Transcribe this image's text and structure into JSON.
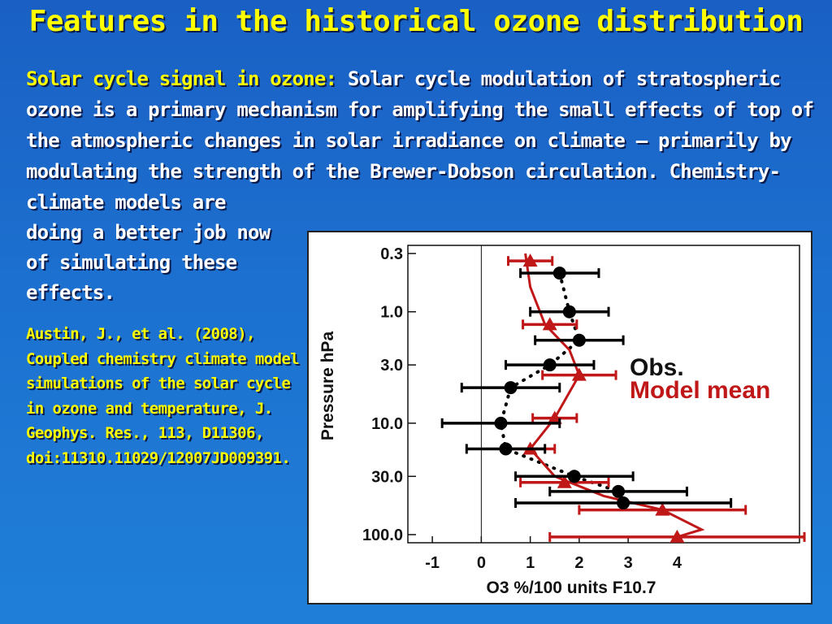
{
  "slide": {
    "title": "Features in the historical ozone distribution",
    "intro_highlight": "Solar cycle signal in ozone:",
    "intro_text": " Solar cycle modulation of stratospheric ozone is a primary mechanism for amplifying the small effects of top of the atmospheric changes in solar irradiance on climate – primarily by modulating the strength of the Brewer-Dobson circulation. Chemistry-climate models are",
    "intro_continued": "doing a better job now of simulating these effects.",
    "citation": "Austin, J., et al. (2008), Coupled chemistry climate model simulations of the solar cycle in ozone and temperature, J. Geophys. Res., 113, D11306, doi:11310.11029/12007JD009391.",
    "colors": {
      "title": "#ffff00",
      "citation": "#ffff00",
      "text": "#ffffff",
      "background": "#1c70cf"
    }
  },
  "chart_data": {
    "type": "scatter",
    "xlabel": "O3 %/100 units F10.7",
    "ylabel": "Pressure hPa",
    "xlim": [
      -1.5,
      6.5
    ],
    "ylim": [
      0.3,
      100.0
    ],
    "y_scale": "log",
    "x_ticks": [
      "-1",
      "0",
      "1",
      "2",
      "3",
      "4"
    ],
    "x_tick_values": [
      -1,
      0,
      1,
      2,
      3,
      4
    ],
    "y_ticks": [
      "0.3",
      "1.0",
      "3.0",
      "10.0",
      "30.0",
      "100.0"
    ],
    "y_tick_values": [
      0.3,
      1.0,
      3.0,
      10.0,
      30.0,
      100.0
    ],
    "zero_line": 0,
    "legend": {
      "position": "right",
      "obs_label": "Obs.",
      "model_label": "Model mean"
    },
    "colors": {
      "obs": "#000000",
      "model": "#c01818"
    },
    "series": [
      {
        "name": "Obs.",
        "style": "dotted-circles",
        "points": [
          {
            "x": 1.6,
            "y": 0.45,
            "xerr": 0.8
          },
          {
            "x": 1.8,
            "y": 1.0,
            "xerr": 0.8
          },
          {
            "x": 2.0,
            "y": 1.8,
            "xerr": 0.9
          },
          {
            "x": 1.4,
            "y": 3.0,
            "xerr": 0.9
          },
          {
            "x": 0.6,
            "y": 4.8,
            "xerr": 1.0
          },
          {
            "x": 0.4,
            "y": 10.0,
            "xerr": 1.2
          },
          {
            "x": 0.5,
            "y": 17.0,
            "xerr": 0.8
          },
          {
            "x": 1.9,
            "y": 30.0,
            "xerr": 1.2
          },
          {
            "x": 2.8,
            "y": 41.0,
            "xerr": 1.4
          },
          {
            "x": 2.9,
            "y": 52.0,
            "xerr": 2.2
          }
        ]
      },
      {
        "name": "Model mean",
        "style": "line-triangles",
        "points": [
          {
            "x": 1.0,
            "y": 0.35,
            "xerr": 0.45
          },
          {
            "x": 1.4,
            "y": 1.3,
            "xerr": 0.55
          },
          {
            "x": 2.0,
            "y": 3.7,
            "xerr": 0.75
          },
          {
            "x": 1.5,
            "y": 9.0,
            "xerr": 0.45
          },
          {
            "x": 1.0,
            "y": 17.0,
            "xerr": 0.5
          },
          {
            "x": 1.7,
            "y": 34.0,
            "xerr": 0.9
          },
          {
            "x": 3.7,
            "y": 60.0,
            "xerr": 1.7
          },
          {
            "x": 4.0,
            "y": 105.0,
            "xerr": 2.6
          }
        ],
        "line": [
          {
            "x": 0.9,
            "y": 0.3
          },
          {
            "x": 1.0,
            "y": 0.6
          },
          {
            "x": 1.3,
            "y": 1.3
          },
          {
            "x": 1.8,
            "y": 2.2
          },
          {
            "x": 2.0,
            "y": 3.7
          },
          {
            "x": 1.5,
            "y": 9.0
          },
          {
            "x": 1.0,
            "y": 17.0
          },
          {
            "x": 1.5,
            "y": 30.0
          },
          {
            "x": 2.5,
            "y": 45.0
          },
          {
            "x": 3.7,
            "y": 60.0
          },
          {
            "x": 4.5,
            "y": 90.0
          },
          {
            "x": 4.0,
            "y": 105.0
          }
        ]
      }
    ]
  }
}
